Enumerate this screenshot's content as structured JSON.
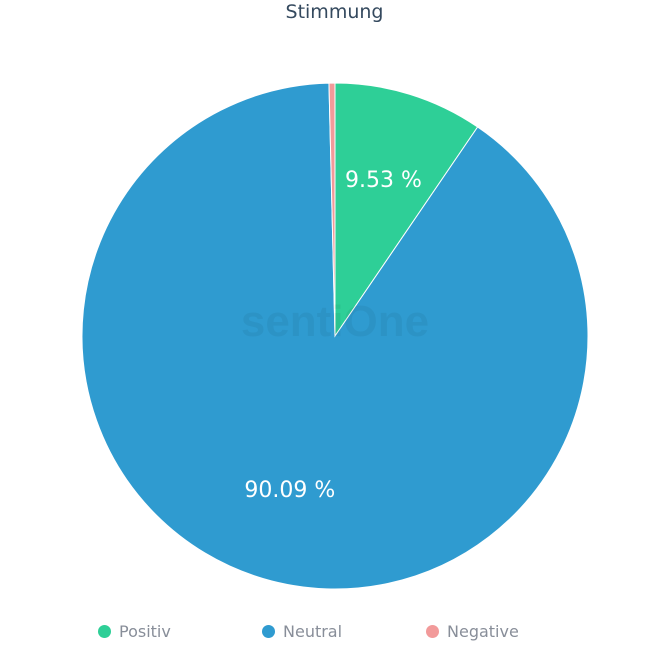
{
  "chart_data": {
    "type": "pie",
    "title": "Stimmung",
    "start_angle": "top, clockwise",
    "slices": [
      {
        "name": "Positiv",
        "value": 9.53,
        "label": "9.53 %",
        "color": "#2ecf97"
      },
      {
        "name": "Neutral",
        "value": 90.09,
        "label": "90.09 %",
        "color": "#2f9bd0"
      },
      {
        "name": "Negative",
        "value": 0.38,
        "label": "",
        "color": "#f29a9a"
      }
    ],
    "legend": {
      "placement": "bottom",
      "entries": [
        "Positiv",
        "Neutral",
        "Negative"
      ]
    },
    "watermark": "sentiOne"
  }
}
